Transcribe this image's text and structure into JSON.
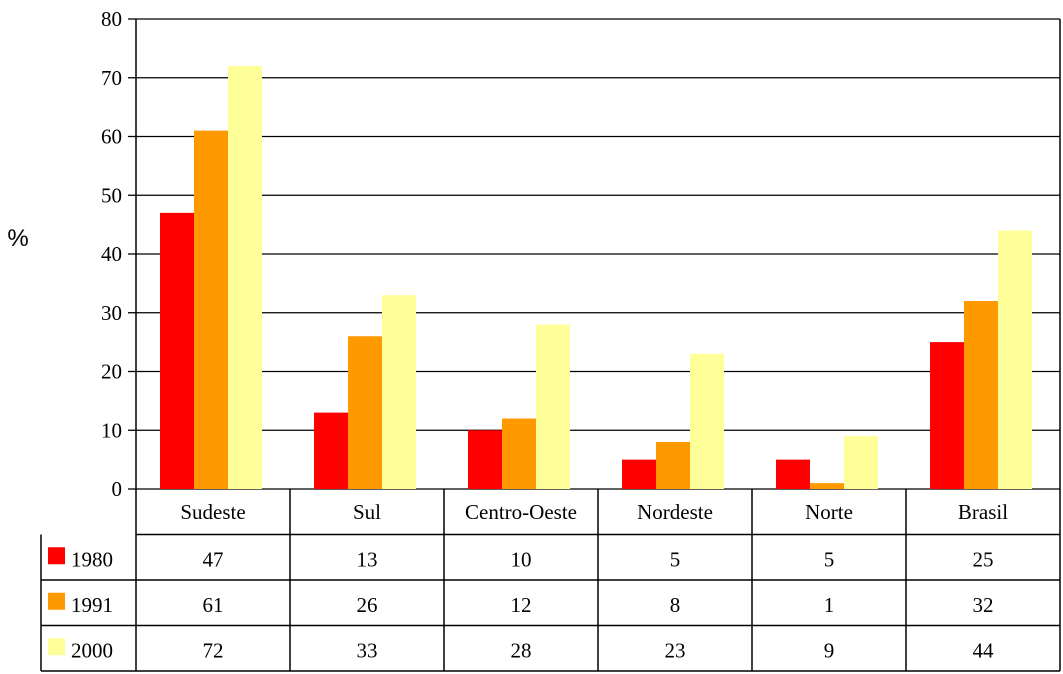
{
  "chart_data": {
    "type": "bar",
    "ylabel": "%",
    "ylim": [
      0,
      80
    ],
    "yticks": [
      "0",
      "10",
      "20",
      "30",
      "40",
      "50",
      "60",
      "70",
      "80"
    ],
    "grid": true,
    "categories": [
      "Sudeste",
      "Sul",
      "Centro-Oeste",
      "Nordeste",
      "Norte",
      "Brasil"
    ],
    "series": [
      {
        "name": "1980",
        "color": "#ff0000",
        "values": [
          47,
          13,
          10,
          5,
          5,
          25
        ],
        "display": [
          "47",
          "13",
          "10",
          "5",
          "5",
          "25"
        ]
      },
      {
        "name": "1991",
        "color": "#ff9900",
        "values": [
          61,
          26,
          12,
          8,
          1,
          32
        ],
        "display": [
          "61",
          "26",
          "12",
          "8",
          "1",
          "32"
        ]
      },
      {
        "name": "2000",
        "color": "#ffff99",
        "values": [
          72,
          33,
          28,
          23,
          9,
          44
        ],
        "display": [
          "72",
          "33",
          "28",
          "23",
          "9",
          "44"
        ]
      }
    ]
  }
}
